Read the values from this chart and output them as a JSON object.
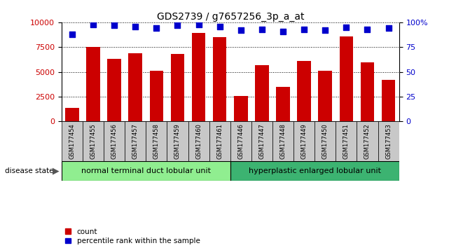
{
  "title": "GDS2739 / g7657256_3p_a_at",
  "samples": [
    "GSM177454",
    "GSM177455",
    "GSM177456",
    "GSM177457",
    "GSM177458",
    "GSM177459",
    "GSM177460",
    "GSM177461",
    "GSM177446",
    "GSM177447",
    "GSM177448",
    "GSM177449",
    "GSM177450",
    "GSM177451",
    "GSM177452",
    "GSM177453"
  ],
  "counts": [
    1400,
    7500,
    6300,
    6900,
    5100,
    6800,
    8900,
    8500,
    2600,
    5700,
    3500,
    6100,
    5100,
    8600,
    6000,
    4200
  ],
  "percentile": [
    88,
    98,
    97,
    96,
    94,
    97,
    98,
    96,
    92,
    93,
    91,
    93,
    92,
    95,
    93,
    94
  ],
  "group1_label": "normal terminal duct lobular unit",
  "group2_label": "hyperplastic enlarged lobular unit",
  "group1_count": 8,
  "group2_count": 8,
  "disease_state_label": "disease state",
  "bar_color": "#cc0000",
  "dot_color": "#0000cc",
  "ylim_left": [
    0,
    10000
  ],
  "ylim_right": [
    0,
    100
  ],
  "yticks_left": [
    0,
    2500,
    5000,
    7500,
    10000
  ],
  "yticks_right": [
    0,
    25,
    50,
    75,
    100
  ],
  "yticklabels_left": [
    "0",
    "2500",
    "5000",
    "7500",
    "10000"
  ],
  "yticklabels_right": [
    "0",
    "25",
    "50",
    "75",
    "100%"
  ],
  "legend_count_label": "count",
  "legend_percentile_label": "percentile rank within the sample",
  "group1_color": "#90ee90",
  "group2_color": "#3cb371",
  "xtick_bg": "#c8c8c8",
  "bar_width": 0.65,
  "dot_size": 40,
  "title_fontsize": 10,
  "tick_fontsize": 8,
  "label_fontsize": 8
}
